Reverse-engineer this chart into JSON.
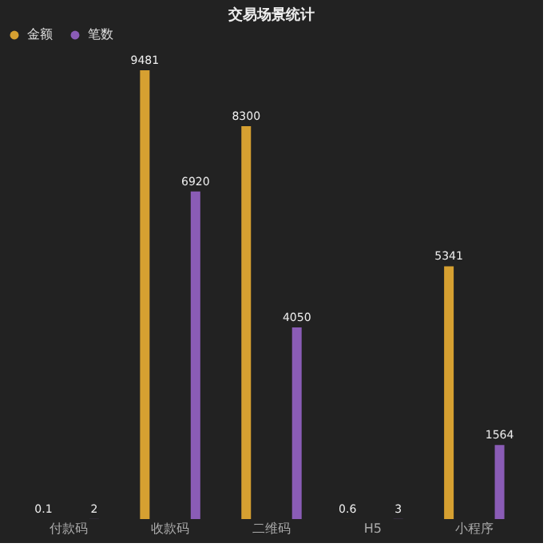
{
  "chart_data": {
    "type": "bar",
    "title": "交易场景统计",
    "categories": [
      "付款码",
      "收款码",
      "二维码",
      "H5",
      "小程序"
    ],
    "series": [
      {
        "name": "金额",
        "color": "#d6a031",
        "values": [
          0.1,
          9481,
          8300,
          0.6,
          5341
        ]
      },
      {
        "name": "笔数",
        "color": "#8a5cb6",
        "values": [
          2,
          6920,
          4050,
          3,
          1564
        ]
      }
    ],
    "data_labels": true,
    "legend": "top",
    "grid": false
  }
}
